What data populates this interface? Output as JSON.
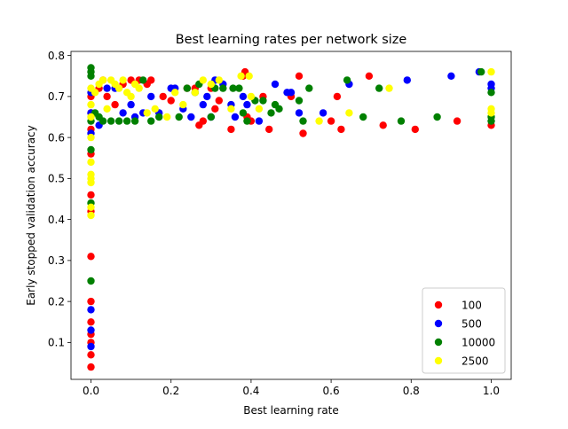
{
  "chart_data": {
    "type": "scatter",
    "title": "Best learning rates per network size",
    "xlabel": "Best learning rate",
    "ylabel": "Early stopped validation accuracy",
    "xlim": [
      -0.05,
      1.05
    ],
    "ylim": [
      0.01,
      0.81
    ],
    "xticks": [
      0.0,
      0.2,
      0.4,
      0.6,
      0.8,
      1.0
    ],
    "xtick_labels": [
      "0.0",
      "0.2",
      "0.4",
      "0.6",
      "0.8",
      "1.0"
    ],
    "yticks": [
      0.1,
      0.2,
      0.3,
      0.4,
      0.5,
      0.6,
      0.7,
      0.8
    ],
    "ytick_labels": [
      "0.1",
      "0.2",
      "0.3",
      "0.4",
      "0.5",
      "0.6",
      "0.7",
      "0.8"
    ],
    "grid": false,
    "legend_position": "lower-right",
    "series": [
      {
        "name": "100",
        "color": "#ff0000",
        "points": [
          [
            0.0,
            0.04
          ],
          [
            0.0,
            0.07
          ],
          [
            0.0,
            0.1
          ],
          [
            0.0,
            0.12
          ],
          [
            0.0,
            0.15
          ],
          [
            0.0,
            0.2
          ],
          [
            0.0,
            0.31
          ],
          [
            0.0,
            0.42
          ],
          [
            0.0,
            0.46
          ],
          [
            0.0,
            0.56
          ],
          [
            0.0,
            0.62
          ],
          [
            0.0,
            0.66
          ],
          [
            0.0,
            0.7
          ],
          [
            0.02,
            0.72
          ],
          [
            0.03,
            0.74
          ],
          [
            0.04,
            0.7
          ],
          [
            0.06,
            0.68
          ],
          [
            0.08,
            0.73
          ],
          [
            0.1,
            0.74
          ],
          [
            0.12,
            0.74
          ],
          [
            0.14,
            0.73
          ],
          [
            0.15,
            0.74
          ],
          [
            0.18,
            0.7
          ],
          [
            0.2,
            0.69
          ],
          [
            0.24,
            0.72
          ],
          [
            0.26,
            0.72
          ],
          [
            0.27,
            0.63
          ],
          [
            0.28,
            0.64
          ],
          [
            0.3,
            0.72
          ],
          [
            0.31,
            0.67
          ],
          [
            0.32,
            0.69
          ],
          [
            0.35,
            0.62
          ],
          [
            0.38,
            0.75
          ],
          [
            0.385,
            0.76
          ],
          [
            0.39,
            0.65
          ],
          [
            0.4,
            0.64
          ],
          [
            0.43,
            0.7
          ],
          [
            0.445,
            0.62
          ],
          [
            0.5,
            0.7
          ],
          [
            0.52,
            0.75
          ],
          [
            0.53,
            0.61
          ],
          [
            0.6,
            0.64
          ],
          [
            0.615,
            0.7
          ],
          [
            0.625,
            0.62
          ],
          [
            0.695,
            0.75
          ],
          [
            0.73,
            0.63
          ],
          [
            0.81,
            0.62
          ],
          [
            0.915,
            0.64
          ],
          [
            1.0,
            0.63
          ]
        ]
      },
      {
        "name": "500",
        "color": "#0000ff",
        "points": [
          [
            0.0,
            0.09
          ],
          [
            0.0,
            0.13
          ],
          [
            0.0,
            0.18
          ],
          [
            0.0,
            0.61
          ],
          [
            0.0,
            0.66
          ],
          [
            0.0,
            0.71
          ],
          [
            0.02,
            0.63
          ],
          [
            0.04,
            0.72
          ],
          [
            0.06,
            0.72
          ],
          [
            0.08,
            0.66
          ],
          [
            0.1,
            0.68
          ],
          [
            0.11,
            0.65
          ],
          [
            0.13,
            0.66
          ],
          [
            0.15,
            0.7
          ],
          [
            0.17,
            0.66
          ],
          [
            0.2,
            0.72
          ],
          [
            0.21,
            0.72
          ],
          [
            0.23,
            0.67
          ],
          [
            0.25,
            0.65
          ],
          [
            0.28,
            0.68
          ],
          [
            0.29,
            0.7
          ],
          [
            0.3,
            0.65
          ],
          [
            0.31,
            0.74
          ],
          [
            0.33,
            0.73
          ],
          [
            0.35,
            0.68
          ],
          [
            0.36,
            0.65
          ],
          [
            0.38,
            0.7
          ],
          [
            0.39,
            0.68
          ],
          [
            0.42,
            0.64
          ],
          [
            0.46,
            0.73
          ],
          [
            0.49,
            0.71
          ],
          [
            0.5,
            0.71
          ],
          [
            0.52,
            0.66
          ],
          [
            0.58,
            0.66
          ],
          [
            0.645,
            0.73
          ],
          [
            0.79,
            0.74
          ],
          [
            0.9,
            0.75
          ],
          [
            0.97,
            0.76
          ],
          [
            1.0,
            0.73
          ],
          [
            1.0,
            0.72
          ]
        ]
      },
      {
        "name": "10000",
        "color": "#008000",
        "points": [
          [
            0.0,
            0.25
          ],
          [
            0.0,
            0.44
          ],
          [
            0.0,
            0.57
          ],
          [
            0.0,
            0.64
          ],
          [
            0.0,
            0.75
          ],
          [
            0.0,
            0.76
          ],
          [
            0.0,
            0.77
          ],
          [
            0.01,
            0.66
          ],
          [
            0.02,
            0.65
          ],
          [
            0.03,
            0.64
          ],
          [
            0.05,
            0.64
          ],
          [
            0.07,
            0.64
          ],
          [
            0.09,
            0.64
          ],
          [
            0.11,
            0.64
          ],
          [
            0.13,
            0.74
          ],
          [
            0.15,
            0.64
          ],
          [
            0.17,
            0.65
          ],
          [
            0.22,
            0.65
          ],
          [
            0.24,
            0.72
          ],
          [
            0.26,
            0.71
          ],
          [
            0.27,
            0.73
          ],
          [
            0.3,
            0.65
          ],
          [
            0.31,
            0.72
          ],
          [
            0.33,
            0.72
          ],
          [
            0.355,
            0.72
          ],
          [
            0.37,
            0.72
          ],
          [
            0.38,
            0.66
          ],
          [
            0.39,
            0.64
          ],
          [
            0.41,
            0.69
          ],
          [
            0.43,
            0.69
          ],
          [
            0.45,
            0.66
          ],
          [
            0.46,
            0.68
          ],
          [
            0.47,
            0.67
          ],
          [
            0.52,
            0.69
          ],
          [
            0.53,
            0.64
          ],
          [
            0.545,
            0.72
          ],
          [
            0.64,
            0.74
          ],
          [
            0.68,
            0.65
          ],
          [
            0.72,
            0.72
          ],
          [
            0.775,
            0.64
          ],
          [
            0.865,
            0.65
          ],
          [
            0.975,
            0.76
          ],
          [
            1.0,
            0.64
          ],
          [
            1.0,
            0.65
          ],
          [
            1.0,
            0.71
          ]
        ]
      },
      {
        "name": "2500",
        "color": "#ffff00",
        "points": [
          [
            0.0,
            0.41
          ],
          [
            0.0,
            0.43
          ],
          [
            0.0,
            0.49
          ],
          [
            0.0,
            0.5
          ],
          [
            0.0,
            0.51
          ],
          [
            0.0,
            0.54
          ],
          [
            0.0,
            0.6
          ],
          [
            0.0,
            0.65
          ],
          [
            0.0,
            0.68
          ],
          [
            0.0,
            0.72
          ],
          [
            0.01,
            0.71
          ],
          [
            0.02,
            0.73
          ],
          [
            0.03,
            0.74
          ],
          [
            0.04,
            0.67
          ],
          [
            0.05,
            0.74
          ],
          [
            0.06,
            0.73
          ],
          [
            0.07,
            0.72
          ],
          [
            0.08,
            0.74
          ],
          [
            0.09,
            0.71
          ],
          [
            0.1,
            0.7
          ],
          [
            0.11,
            0.73
          ],
          [
            0.12,
            0.72
          ],
          [
            0.14,
            0.66
          ],
          [
            0.16,
            0.67
          ],
          [
            0.19,
            0.65
          ],
          [
            0.21,
            0.71
          ],
          [
            0.23,
            0.68
          ],
          [
            0.26,
            0.71
          ],
          [
            0.28,
            0.74
          ],
          [
            0.3,
            0.73
          ],
          [
            0.32,
            0.74
          ],
          [
            0.35,
            0.67
          ],
          [
            0.375,
            0.75
          ],
          [
            0.395,
            0.75
          ],
          [
            0.4,
            0.7
          ],
          [
            0.42,
            0.67
          ],
          [
            0.57,
            0.64
          ],
          [
            0.645,
            0.66
          ],
          [
            0.745,
            0.72
          ],
          [
            1.0,
            0.76
          ],
          [
            1.0,
            0.67
          ],
          [
            1.0,
            0.66
          ]
        ]
      }
    ]
  }
}
